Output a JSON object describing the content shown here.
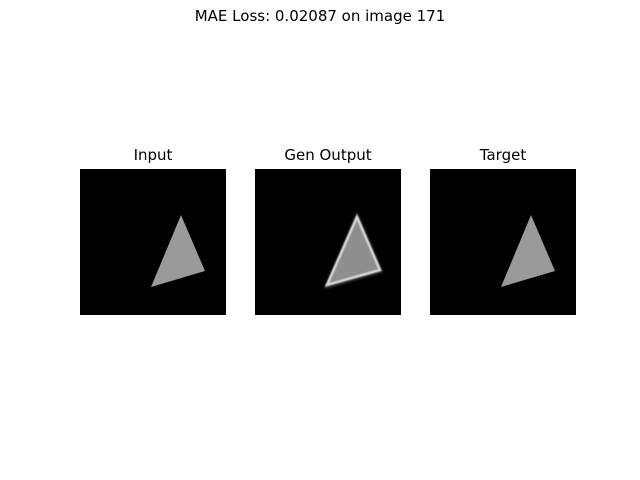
{
  "figure": {
    "suptitle": "MAE Loss: 0.02087 on image 171",
    "panels": [
      {
        "title": "Input",
        "content": "gray triangle on black background"
      },
      {
        "title": "Gen Output",
        "content": "blurry gray triangle with bright edges on black background"
      },
      {
        "title": "Target",
        "content": "gray triangle on black background"
      }
    ]
  },
  "colors": {
    "background": "#000000",
    "triangle_fill": "#9a9a9a",
    "gen_fill": "#8e8e8e",
    "gen_edge": "#d8d8d8"
  }
}
